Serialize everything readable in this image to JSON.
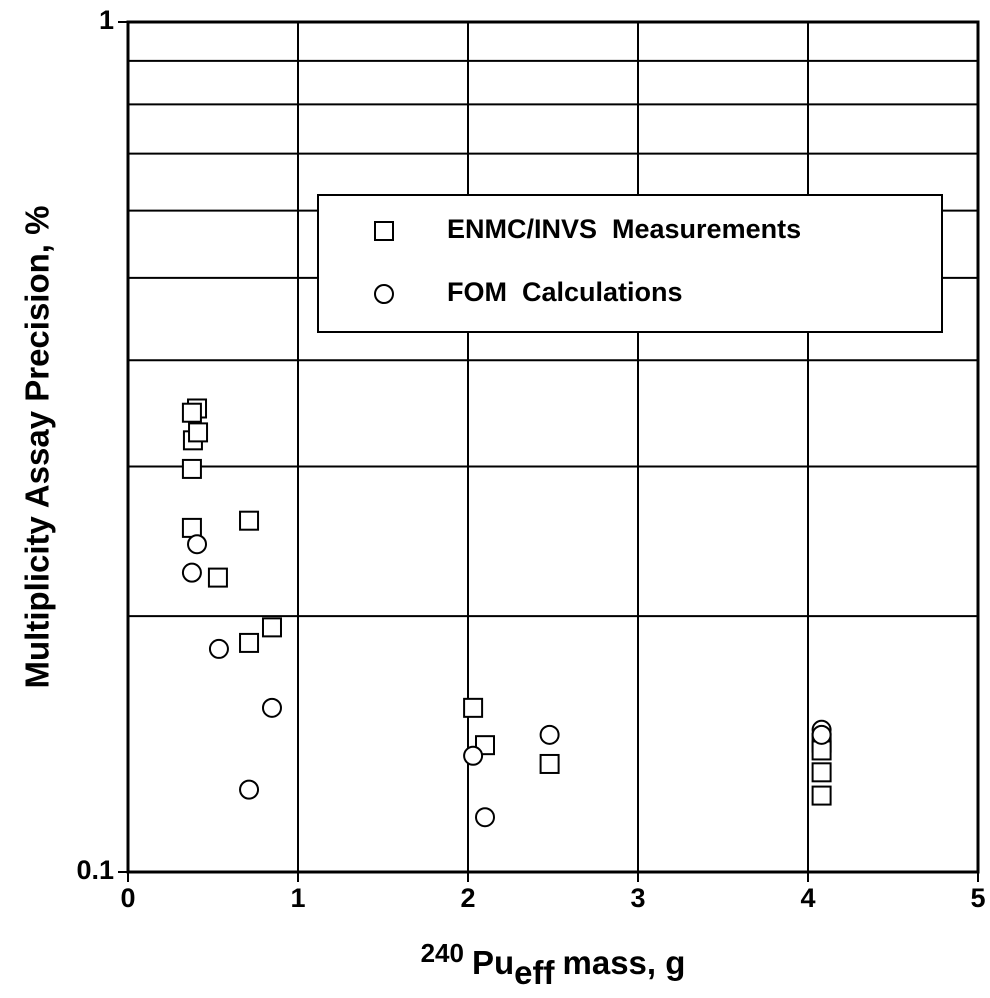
{
  "chart_data": {
    "type": "scatter",
    "xlabel": {
      "isotope": "240",
      "element": "Pu",
      "subscript": "eff",
      "rest": "mass, g"
    },
    "ylabel": "Multiplicity Assay Precision, %",
    "xlim": [
      0,
      5
    ],
    "xticks": [
      0,
      1,
      2,
      3,
      4,
      5
    ],
    "ylim": [
      0.1,
      1
    ],
    "yticks": [
      0.1,
      1
    ],
    "log_y": true,
    "y_minor_grid": [
      0.2,
      0.3,
      0.4,
      0.5,
      0.6,
      0.7,
      0.8,
      0.9
    ],
    "grid": true,
    "legend": "upper right",
    "series": [
      {
        "name": "ENMC/INVS  Measurements",
        "marker": "square",
        "color": "#000000",
        "x": [
          0.406,
          0.376,
          0.382,
          0.412,
          0.376,
          0.376,
          0.712,
          0.529,
          0.847,
          0.712,
          2.03,
          2.1,
          2.48,
          4.08,
          4.08,
          4.08,
          4.08
        ],
        "values": [
          0.351,
          0.347,
          0.322,
          0.329,
          0.298,
          0.254,
          0.259,
          0.222,
          0.194,
          0.186,
          0.156,
          0.141,
          0.134,
          0.142,
          0.139,
          0.131,
          0.123
        ]
      },
      {
        "name": "FOM  Calculations",
        "marker": "circle",
        "color": "#000000",
        "x": [
          0.406,
          0.376,
          0.535,
          0.847,
          0.712,
          2.03,
          2.1,
          2.48,
          4.08,
          4.08
        ],
        "values": [
          0.243,
          0.225,
          0.183,
          0.156,
          0.125,
          0.137,
          0.116,
          0.145,
          0.147,
          0.145
        ]
      }
    ]
  }
}
